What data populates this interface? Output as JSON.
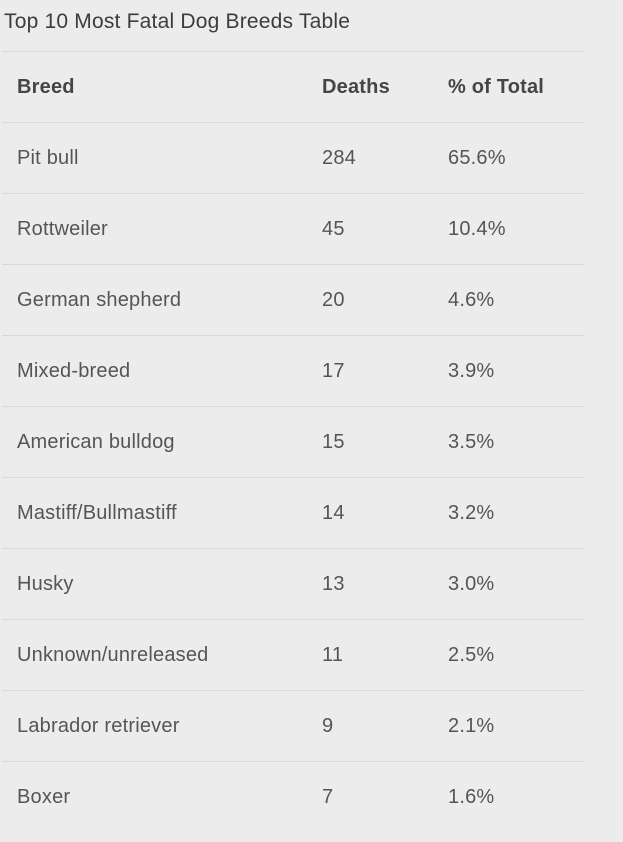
{
  "title": "Top 10 Most Fatal Dog Breeds Table",
  "colors": {
    "page_background": "#ececec",
    "divider": "#d9d9d9",
    "title_text": "#3c3c3c",
    "header_text": "#454545",
    "body_text": "#555555"
  },
  "table": {
    "columns": [
      "Breed",
      "Deaths",
      "% of Total"
    ],
    "rows": [
      {
        "breed": "Pit bull",
        "deaths": "284",
        "percent": "65.6%"
      },
      {
        "breed": "Rottweiler",
        "deaths": "45",
        "percent": "10.4%"
      },
      {
        "breed": "German shepherd",
        "deaths": "20",
        "percent": "4.6%"
      },
      {
        "breed": "Mixed-breed",
        "deaths": "17",
        "percent": "3.9%"
      },
      {
        "breed": "American bulldog",
        "deaths": "15",
        "percent": "3.5%"
      },
      {
        "breed": "Mastiff/Bullmastiff",
        "deaths": "14",
        "percent": "3.2%"
      },
      {
        "breed": "Husky",
        "deaths": "13",
        "percent": "3.0%"
      },
      {
        "breed": "Unknown/unreleased",
        "deaths": "11",
        "percent": "2.5%"
      },
      {
        "breed": "Labrador retriever",
        "deaths": "9",
        "percent": "2.1%"
      },
      {
        "breed": "Boxer",
        "deaths": "7",
        "percent": "1.6%"
      }
    ]
  },
  "chart_data": {
    "type": "table",
    "title": "Top 10 Most Fatal Dog Breeds Table",
    "columns": [
      "Breed",
      "Deaths",
      "% of Total"
    ],
    "rows": [
      [
        "Pit bull",
        284,
        "65.6%"
      ],
      [
        "Rottweiler",
        45,
        "10.4%"
      ],
      [
        "German shepherd",
        20,
        "4.6%"
      ],
      [
        "Mixed-breed",
        17,
        "3.9%"
      ],
      [
        "American bulldog",
        15,
        "3.5%"
      ],
      [
        "Mastiff/Bullmastiff",
        14,
        "3.2%"
      ],
      [
        "Husky",
        13,
        "3.0%"
      ],
      [
        "Unknown/unreleased",
        11,
        "2.5%"
      ],
      [
        "Labrador retriever",
        9,
        "2.1%"
      ],
      [
        "Boxer",
        7,
        "1.6%"
      ]
    ]
  }
}
